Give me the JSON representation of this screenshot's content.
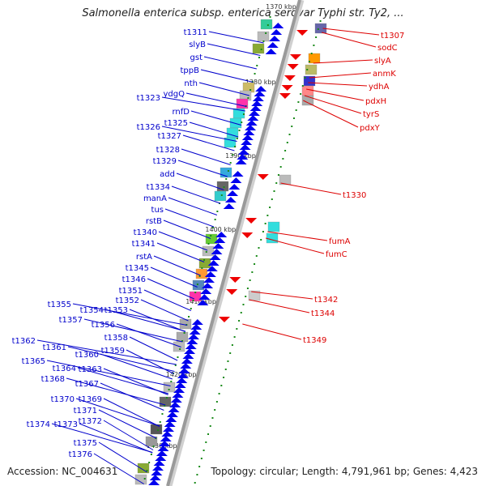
{
  "header": {
    "title": "Salmonella enterica subsp. enterica serovar Typhi str. Ty2, ..."
  },
  "footer": {
    "accession": "Accession: NC_004631",
    "topology": "Topology: circular; Length: 4,791,961 bp; Genes: 4,423"
  },
  "map": {
    "kbp_marks": [
      "1370 kbp",
      "1380 kbp",
      "1390 kbp",
      "1400 kbp",
      "1410 kbp",
      "1420 kbp",
      "1430 kbp"
    ],
    "left_genes": [
      "t1311",
      "slyB",
      "gst",
      "tppB",
      "nth",
      "ydgQ",
      "t1323",
      "rnfD",
      "t1325",
      "t1326",
      "t1327",
      "t1328",
      "t1329",
      "add",
      "t1334",
      "manA",
      "tus",
      "rstB",
      "t1340",
      "t1341",
      "rstA",
      "t1345",
      "t1346",
      "t1351",
      "t1352",
      "t1355",
      "t1354",
      "t1353",
      "t1357",
      "t1356",
      "t1358",
      "t1359",
      "t1362",
      "t1361",
      "t1360",
      "t1365",
      "t1364",
      "t1363",
      "t1368",
      "t1367",
      "t1370",
      "t1369",
      "t1371",
      "t1374",
      "t1373",
      "t1372",
      "t1375",
      "t1376"
    ],
    "right_genes": [
      "t1307",
      "sodC",
      "slyA",
      "anmK",
      "ydhA",
      "pdxH",
      "tyrS",
      "pdxY",
      "t1330",
      "fumA",
      "fumC",
      "t1342",
      "t1344",
      "t1349"
    ],
    "colors": {
      "forward_label": "#0000cc",
      "reverse_label": "#dd0000",
      "backbone": "#9a9a9a",
      "forward_arrow": "#0000ee",
      "reverse_arrow": "#ee0000",
      "tick": "#1a8a1a"
    }
  }
}
